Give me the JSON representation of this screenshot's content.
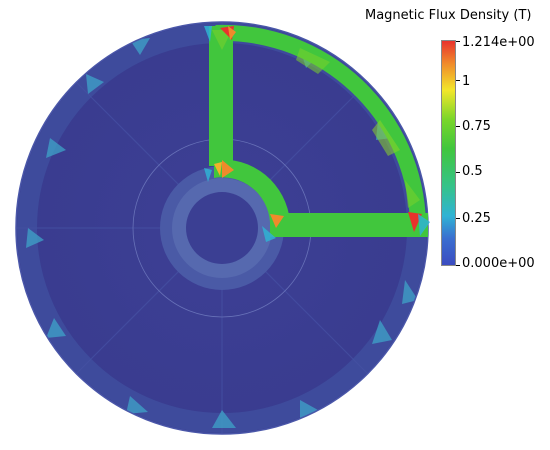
{
  "legend": {
    "title": "Magnetic Flux Density (T)",
    "max_label": "1.214e+00",
    "tick_1": "1",
    "tick_075": "0.75",
    "tick_05": "0.5",
    "tick_025": "0.25",
    "min_label": "0.000e+00",
    "range": [
      0,
      1.214
    ],
    "colormap": [
      "#3b4cc0",
      "#2fb3d4",
      "#3fc85a",
      "#7ad62a",
      "#f2e62b",
      "#f08a2b",
      "#e8322c"
    ]
  },
  "colors": {
    "background_field": "#3b3f93",
    "flux_path": "#41c63d",
    "hotspot": "#e8322c"
  }
}
